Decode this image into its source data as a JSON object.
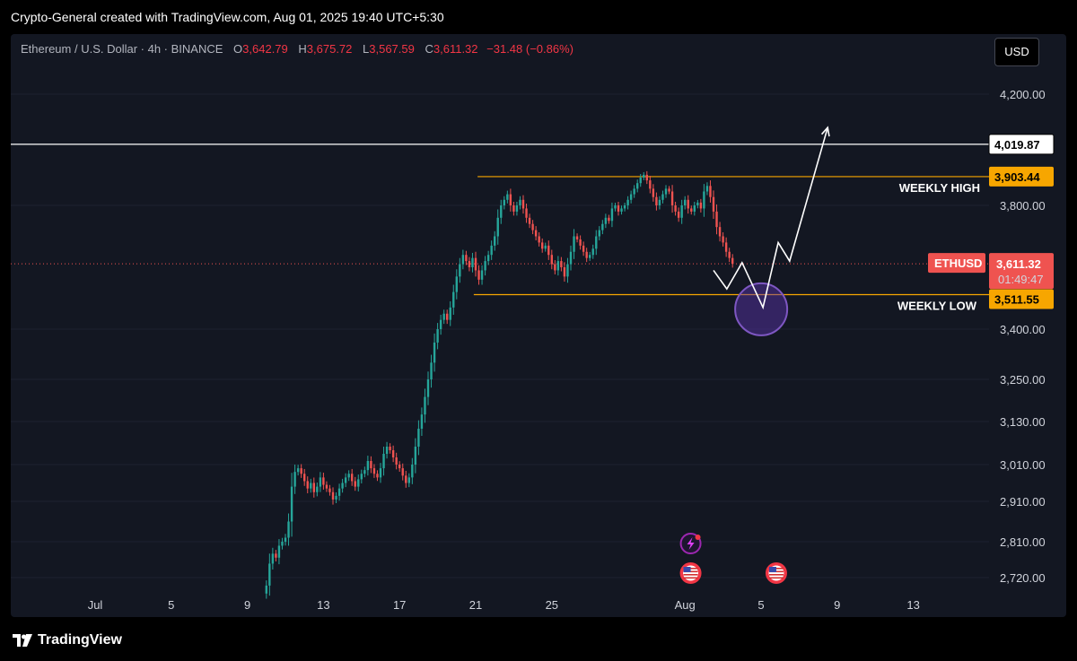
{
  "header": {
    "credit": "Crypto-General created with TradingView.com, Aug 01, 2025 19:40 UTC+5:30"
  },
  "legend": {
    "symbol": "Ethereum / U.S. Dollar · 4h · BINANCE",
    "o_label": "O",
    "o_value": "3,642.79",
    "h_label": "H",
    "h_value": "3,675.72",
    "l_label": "L",
    "l_value": "3,567.59",
    "c_label": "C",
    "c_value": "3,611.32",
    "change": "−31.48 (−0.86%)"
  },
  "currency_button": "USD",
  "footer": {
    "brand": "TradingView"
  },
  "colors": {
    "up": "#26a69a",
    "down": "#ef5350",
    "orange": "#f7a600",
    "background": "#131722",
    "purple": "#7e57c2"
  },
  "chart_data": {
    "type": "candlestick",
    "symbol": "ETHUSD",
    "interval": "4h",
    "y_ticks": [
      "4,200.00",
      "3,800.00",
      "3,400.00",
      "3,250.00",
      "3,130.00",
      "3,010.00",
      "2,910.00",
      "2,810.00",
      "2,720.00"
    ],
    "x_ticks": [
      "Jul",
      "5",
      "9",
      "13",
      "17",
      "21",
      "25",
      "Aug",
      "5",
      "9",
      "13"
    ],
    "x_tick_dates": [
      0,
      4,
      8,
      12,
      16,
      20,
      24,
      31,
      35,
      39,
      43
    ],
    "price_tags": {
      "resistance": "4,019.87",
      "weekly_high": "3,903.44",
      "last_symbol": "ETHUSD",
      "last_price": "3,611.32",
      "countdown": "01:49:47",
      "weekly_low": "3,511.55"
    },
    "levels": [
      {
        "label": "WEEKLY HIGH",
        "price": 3903.44
      },
      {
        "label": "WEEKLY LOW",
        "price": 3511.55
      },
      {
        "label": "",
        "price": 4019.87
      }
    ],
    "annotations": {
      "weekly_high": "WEEKLY HIGH",
      "weekly_low": "WEEKLY LOW"
    },
    "path_start_day": 9,
    "closes": [
      2700,
      2755,
      2780,
      2770,
      2800,
      2810,
      2820,
      2860,
      2950,
      2990,
      3000,
      2985,
      2965,
      2945,
      2960,
      2935,
      2950,
      2975,
      2955,
      2945,
      2935,
      2915,
      2925,
      2945,
      2960,
      2975,
      2985,
      2965,
      2950,
      2970,
      2985,
      2995,
      3020,
      3000,
      2985,
      2975,
      3000,
      3040,
      3060,
      3050,
      3030,
      3010,
      3000,
      2980,
      2960,
      2975,
      3010,
      3060,
      3110,
      3150,
      3200,
      3250,
      3300,
      3360,
      3400,
      3430,
      3450,
      3430,
      3470,
      3520,
      3570,
      3610,
      3640,
      3620,
      3600,
      3630,
      3590,
      3560,
      3590,
      3620,
      3640,
      3670,
      3700,
      3760,
      3800,
      3820,
      3840,
      3800,
      3780,
      3800,
      3820,
      3790,
      3760,
      3740,
      3720,
      3700,
      3680,
      3660,
      3670,
      3640,
      3610,
      3590,
      3620,
      3600,
      3570,
      3610,
      3650,
      3700,
      3690,
      3670,
      3650,
      3630,
      3640,
      3660,
      3700,
      3720,
      3740,
      3760,
      3750,
      3790,
      3800,
      3780,
      3790,
      3800,
      3820,
      3840,
      3860,
      3880,
      3900,
      3910,
      3890,
      3860,
      3830,
      3800,
      3820,
      3840,
      3860,
      3850,
      3800,
      3780,
      3760,
      3800,
      3820,
      3790,
      3780,
      3800,
      3810,
      3790,
      3850,
      3870,
      3830,
      3780,
      3730,
      3700,
      3680,
      3650,
      3630,
      3611.32
    ],
    "projection": [
      {
        "day": 32.5,
        "price": 3590
      },
      {
        "day": 33.2,
        "price": 3530
      },
      {
        "day": 34.0,
        "price": 3615
      },
      {
        "day": 35.1,
        "price": 3470
      },
      {
        "day": 35.9,
        "price": 3680
      },
      {
        "day": 36.5,
        "price": 3620
      },
      {
        "day": 38.5,
        "price": 4080
      }
    ],
    "highlight_circle": {
      "day": 35.1,
      "price": 3470
    },
    "event_icons": [
      {
        "name": "bolt-event-icon",
        "day": 31.3
      },
      {
        "name": "us-flag-event-icon",
        "day": 31.3
      },
      {
        "name": "us-flag-event-icon",
        "day": 35.8
      }
    ]
  }
}
